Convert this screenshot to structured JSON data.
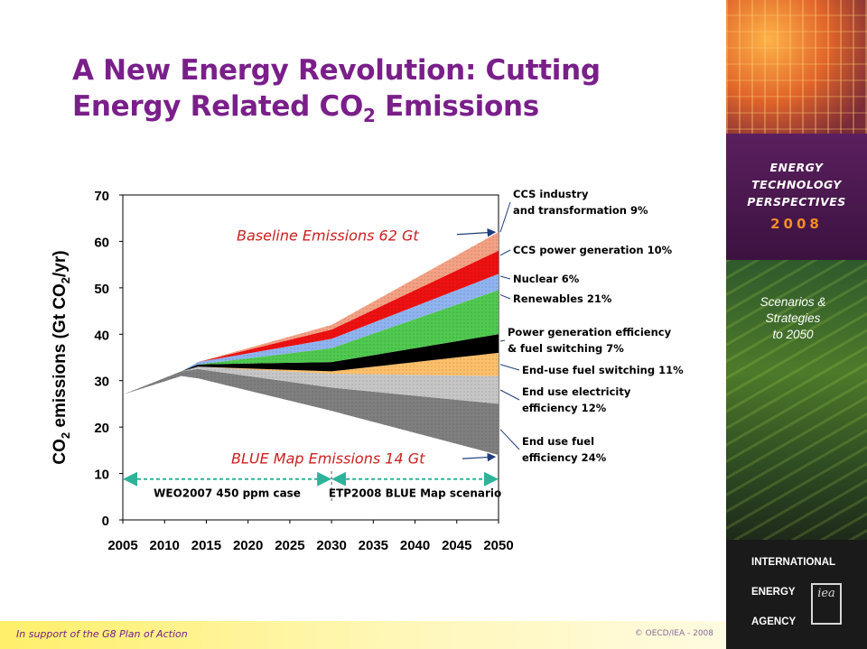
{
  "slide": {
    "title_line1": "A New Energy Revolution: Cutting",
    "title_line2_pre": "Energy Related CO",
    "title_line2_sub": "2",
    "title_line2_post": " Emissions",
    "footer_left": "In support of the G8 Plan of Action",
    "footer_right": "© OECD/IEA - 2008"
  },
  "sidebar": {
    "etp_line1": "ENERGY",
    "etp_line2": "TECHNOLOGY",
    "etp_line3": "PERSPECTIVES",
    "year": "2008",
    "scenarios_line1": "Scenarios &",
    "scenarios_line2": "Strategies",
    "scenarios_line3": "to 2050",
    "iea_line1": "INTERNATIONAL",
    "iea_line2": "ENERGY",
    "iea_line3": "AGENCY",
    "colors": {
      "accent_orange": "#f28c28",
      "purple": "#5a1f5e",
      "green": "#4d7a2a"
    }
  },
  "chart_data": {
    "type": "area",
    "ylabel": "CO₂ emissions (Gt CO₂/yr)",
    "ylabel_parts": {
      "a": "CO",
      "a_sub": "2",
      "b": " emissions (Gt CO",
      "b_sub": "2",
      "c": "/yr)"
    },
    "ylim": [
      0,
      70
    ],
    "yticks": [
      0,
      10,
      20,
      30,
      40,
      50,
      60,
      70
    ],
    "xlim": [
      2005,
      2050
    ],
    "xticks": [
      "2005",
      "2010",
      "2015",
      "2020",
      "2025",
      "2030",
      "2035",
      "2040",
      "2045",
      "2050"
    ],
    "x": [
      2005,
      2012,
      2014,
      2030,
      2050
    ],
    "blue_map_line": [
      27,
      31,
      30.5,
      23.5,
      14
    ],
    "wedges": [
      {
        "name": "End use fuel efficiency 24%",
        "color": "#7f7f7f",
        "top": [
          27,
          32,
          32.5,
          28.5,
          25
        ]
      },
      {
        "name": "End use electricity efficiency 12%",
        "color": "#c6c6c6",
        "top": [
          27,
          32,
          33,
          31.5,
          31
        ]
      },
      {
        "name": "End-use fuel switching 11%",
        "color": "#fdbf6a",
        "top": [
          27,
          32,
          33,
          32,
          36
        ]
      },
      {
        "name": "Power generation efficiency & fuel switching 7%",
        "color": "#000000",
        "top": [
          27,
          32,
          33.5,
          34,
          40
        ]
      },
      {
        "name": "Renewables 21%",
        "color": "#4fc94f",
        "top": [
          27,
          32,
          33.5,
          37,
          49.5
        ]
      },
      {
        "name": "Nuclear 6%",
        "color": "#8fb4f0",
        "top": [
          27,
          32,
          34,
          39,
          53
        ]
      },
      {
        "name": "CCS power generation 10%",
        "color": "#ee1111",
        "top": [
          27,
          32,
          34,
          41,
          58
        ]
      },
      {
        "name": "CCS industry and transformation 9%",
        "color": "#f4a184",
        "top": [
          27,
          32,
          34,
          42,
          62
        ]
      }
    ],
    "annotations": {
      "baseline": "Baseline Emissions 62 Gt",
      "blue_map": "BLUE Map Emissions 14 Gt",
      "period1": "WEO2007 450 ppm case",
      "period2": "ETP2008 BLUE Map scenario",
      "period_boundary_year": 2030
    },
    "labels": [
      {
        "line1": "CCS industry",
        "line2": "and transformation 9%",
        "y": 62
      },
      {
        "line1": "CCS power generation 10%",
        "line2": "",
        "y": 57
      },
      {
        "line1": "Nuclear 6%",
        "line2": "",
        "y": 52.5
      },
      {
        "line1": "Renewables 21%",
        "line2": "",
        "y": 48.5
      },
      {
        "line1": "Power generation efficiency",
        "line2": "& fuel switching 7%",
        "y": 38.5
      },
      {
        "line1": "End-use fuel switching 11%",
        "line2": "",
        "y": 33.5
      },
      {
        "line1": "End use electricity",
        "line2": "efficiency 12%",
        "y": 28
      },
      {
        "line1": "End use fuel",
        "line2": "efficiency 24%",
        "y": 19.5
      }
    ],
    "colors": {
      "title": "#7a1f8a",
      "annotation": "#cc1f1f",
      "period_arrow": "#2eb39a",
      "callout_arrow": "#1f3f7a"
    }
  }
}
